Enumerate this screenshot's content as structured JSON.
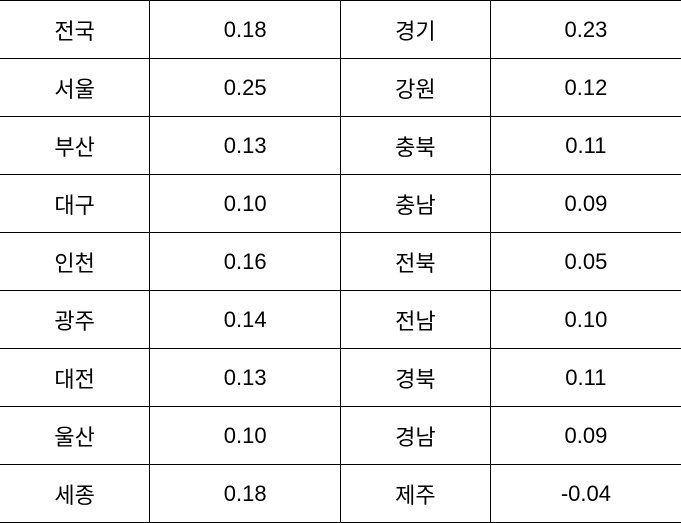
{
  "table": {
    "type": "table",
    "background_color": "#ffffff",
    "border_color": "#000000",
    "text_color": "#000000",
    "font_size": 22,
    "column_widths": [
      "22%",
      "28%",
      "22%",
      "28%"
    ],
    "rows": [
      {
        "region1": "전국",
        "value1": "0.18",
        "region2": "경기",
        "value2": "0.23"
      },
      {
        "region1": "서울",
        "value1": "0.25",
        "region2": "강원",
        "value2": "0.12"
      },
      {
        "region1": "부산",
        "value1": "0.13",
        "region2": "충북",
        "value2": "0.11"
      },
      {
        "region1": "대구",
        "value1": "0.10",
        "region2": "충남",
        "value2": "0.09"
      },
      {
        "region1": "인천",
        "value1": "0.16",
        "region2": "전북",
        "value2": "0.05"
      },
      {
        "region1": "광주",
        "value1": "0.14",
        "region2": "전남",
        "value2": "0.10"
      },
      {
        "region1": "대전",
        "value1": "0.13",
        "region2": "경북",
        "value2": "0.11"
      },
      {
        "region1": "울산",
        "value1": "0.10",
        "region2": "경남",
        "value2": "0.09"
      },
      {
        "region1": "세종",
        "value1": "0.18",
        "region2": "제주",
        "value2": "-0.04"
      }
    ]
  }
}
